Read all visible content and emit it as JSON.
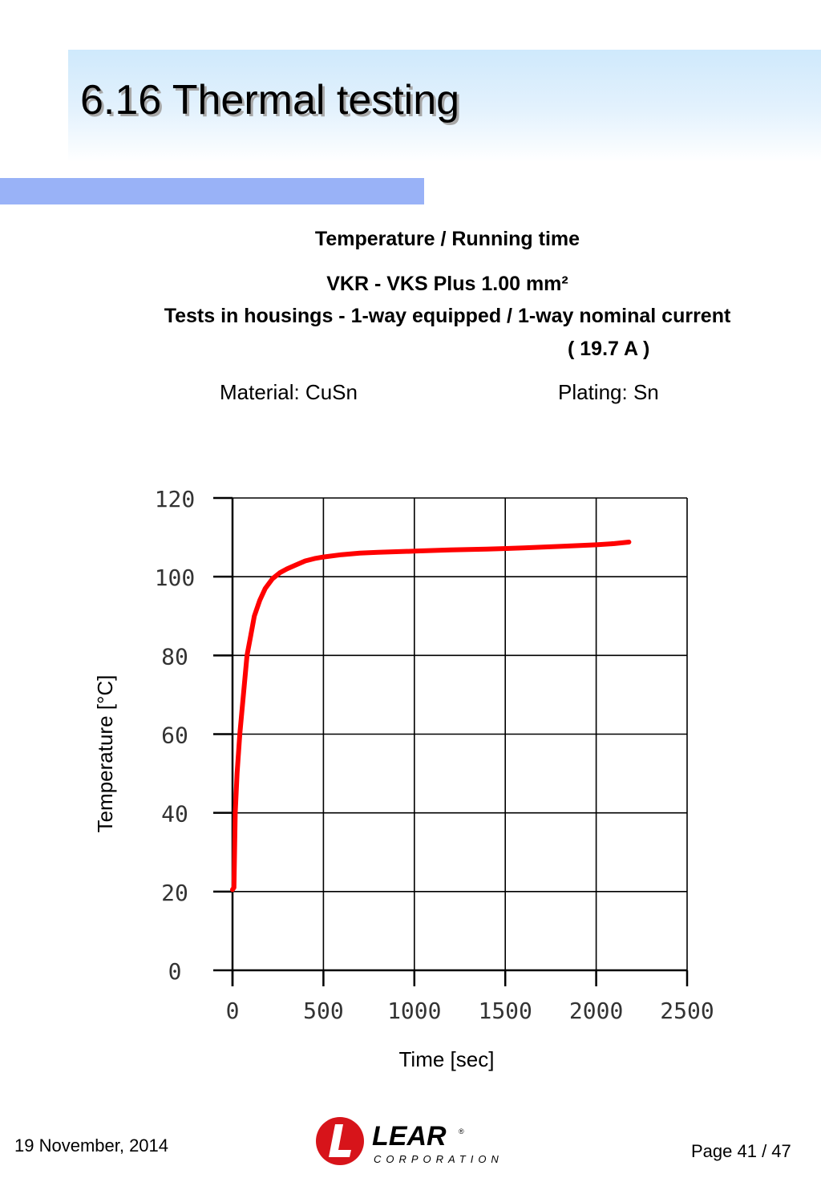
{
  "slide": {
    "title": "6.16 Thermal testing",
    "heading": "Temperature / Running time",
    "product": "VKR - VKS  Plus 1.00 mm²",
    "test_line": "Tests in housings - 1-way equipped / 1-way nominal current",
    "current": "( 19.7 A )",
    "material": "Material: CuSn",
    "plating": "Plating: Sn"
  },
  "footer": {
    "date": "19 November, 2014",
    "page": "Page 41 / 47",
    "logo_word": "LEAR",
    "logo_sub": "CORPORATION",
    "logo_mark": "®"
  },
  "colors": {
    "title_band": "#cfe9fc",
    "accent_bar": "#99b2f7",
    "curve": "#ff0000",
    "logo_red": "#d7141a"
  },
  "chart_data": {
    "type": "line",
    "xlabel": "Time [sec]",
    "ylabel": "Temperature [°C]",
    "xlim": [
      0,
      2500
    ],
    "ylim": [
      0,
      120
    ],
    "xticks": [
      0,
      500,
      1000,
      1500,
      2000,
      2500
    ],
    "yticks": [
      0,
      20,
      40,
      60,
      80,
      100,
      120
    ],
    "grid": true,
    "series": [
      {
        "color": "#ff0000",
        "x": [
          0,
          8,
          15,
          25,
          40,
          60,
          80,
          100,
          120,
          150,
          180,
          220,
          260,
          300,
          350,
          400,
          450,
          500,
          600,
          700,
          800,
          1000,
          1200,
          1400,
          1600,
          1800,
          2000,
          2100,
          2180
        ],
        "y": [
          20.5,
          21,
          40,
          50,
          60,
          70,
          80,
          85,
          90,
          94,
          97,
          99.5,
          101,
          102,
          103,
          104,
          104.6,
          105,
          105.6,
          106,
          106.2,
          106.5,
          106.8,
          107,
          107.3,
          107.7,
          108.1,
          108.4,
          108.8
        ]
      }
    ]
  }
}
